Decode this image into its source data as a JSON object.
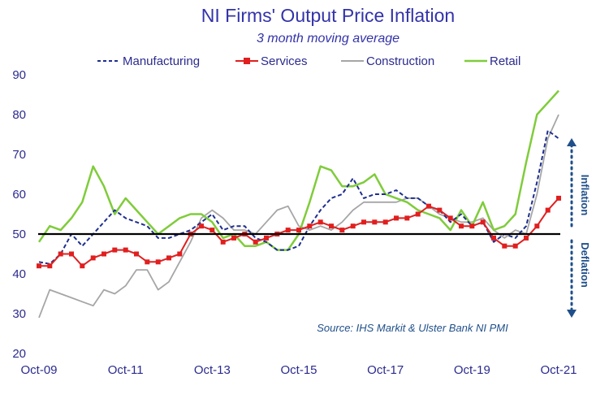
{
  "chart_data": {
    "type": "line",
    "title": "NI Firms' Output Price Inflation",
    "subtitle": "3 month moving average",
    "source": "Source: IHS Markit & Ulster Bank NI PMI",
    "x_tick_labels": [
      "Oct-09",
      "Oct-11",
      "Oct-13",
      "Oct-15",
      "Oct-17",
      "Oct-19",
      "Oct-21"
    ],
    "x_range": [
      "2009-10",
      "2021-10"
    ],
    "y_ticks": [
      20,
      30,
      40,
      50,
      60,
      70,
      80,
      90
    ],
    "ylim": [
      20,
      90
    ],
    "reference_line": 50,
    "annotations": {
      "upper": "Inflation",
      "lower": "Deflation"
    },
    "grid": false,
    "legend_position": "top",
    "series": [
      {
        "name": "Manufacturing",
        "color": "#1f2f8f",
        "style": "dashed",
        "x": [
          "2009-10",
          "2010-01",
          "2010-04",
          "2010-07",
          "2010-10",
          "2011-01",
          "2011-04",
          "2011-07",
          "2011-10",
          "2012-01",
          "2012-04",
          "2012-07",
          "2012-10",
          "2013-01",
          "2013-04",
          "2013-07",
          "2013-10",
          "2014-01",
          "2014-04",
          "2014-07",
          "2014-10",
          "2015-01",
          "2015-04",
          "2015-07",
          "2015-10",
          "2016-01",
          "2016-04",
          "2016-07",
          "2016-10",
          "2017-01",
          "2017-04",
          "2017-07",
          "2017-10",
          "2018-01",
          "2018-04",
          "2018-07",
          "2018-10",
          "2019-01",
          "2019-04",
          "2019-07",
          "2019-10",
          "2020-01",
          "2020-04",
          "2020-07",
          "2020-10",
          "2021-01",
          "2021-04",
          "2021-07",
          "2021-10"
        ],
        "values": [
          43,
          42.5,
          45,
          50,
          47,
          50,
          53,
          56,
          54,
          53,
          52,
          49,
          49,
          50,
          51,
          53,
          55,
          51,
          52,
          52,
          49,
          48,
          46,
          46,
          47,
          52,
          56,
          59,
          60,
          64,
          59,
          60,
          60,
          61,
          59,
          59,
          57,
          56,
          53,
          55,
          52,
          53,
          48,
          50,
          49,
          52,
          63,
          76,
          74
        ]
      },
      {
        "name": "Services",
        "color": "#e01f1f",
        "style": "solid-markers",
        "x": [
          "2009-10",
          "2010-01",
          "2010-04",
          "2010-07",
          "2010-10",
          "2011-01",
          "2011-04",
          "2011-07",
          "2011-10",
          "2012-01",
          "2012-04",
          "2012-07",
          "2012-10",
          "2013-01",
          "2013-04",
          "2013-07",
          "2013-10",
          "2014-01",
          "2014-04",
          "2014-07",
          "2014-10",
          "2015-01",
          "2015-04",
          "2015-07",
          "2015-10",
          "2016-01",
          "2016-04",
          "2016-07",
          "2016-10",
          "2017-01",
          "2017-04",
          "2017-07",
          "2017-10",
          "2018-01",
          "2018-04",
          "2018-07",
          "2018-10",
          "2019-01",
          "2019-04",
          "2019-07",
          "2019-10",
          "2020-01",
          "2020-04",
          "2020-07",
          "2020-10",
          "2021-01",
          "2021-04",
          "2021-07",
          "2021-10"
        ],
        "values": [
          42,
          42,
          45,
          45,
          42,
          44,
          45,
          46,
          46,
          45,
          43,
          43,
          44,
          45,
          50,
          52,
          51,
          48,
          49,
          50,
          48,
          49,
          50,
          51,
          51,
          52,
          53,
          52,
          51,
          52,
          53,
          53,
          53,
          54,
          54,
          55,
          57,
          56,
          54,
          52,
          52,
          53,
          49,
          47,
          47,
          49,
          52,
          56,
          59
        ]
      },
      {
        "name": "Construction",
        "color": "#a6a6a6",
        "style": "solid",
        "x": [
          "2009-10",
          "2010-01",
          "2010-04",
          "2010-07",
          "2010-10",
          "2011-01",
          "2011-04",
          "2011-07",
          "2011-10",
          "2012-01",
          "2012-04",
          "2012-07",
          "2012-10",
          "2013-01",
          "2013-04",
          "2013-07",
          "2013-10",
          "2014-01",
          "2014-04",
          "2014-07",
          "2014-10",
          "2015-01",
          "2015-04",
          "2015-07",
          "2015-10",
          "2016-01",
          "2016-04",
          "2016-07",
          "2016-10",
          "2017-01",
          "2017-04",
          "2017-07",
          "2017-10",
          "2018-01",
          "2018-04",
          "2018-07",
          "2018-10",
          "2019-01",
          "2019-04",
          "2019-07",
          "2019-10",
          "2020-01",
          "2020-04",
          "2020-07",
          "2020-10",
          "2021-01",
          "2021-04",
          "2021-07",
          "2021-10"
        ],
        "values": [
          29,
          36,
          35,
          34,
          33,
          32,
          36,
          35,
          37,
          41,
          41,
          36,
          38,
          43,
          48,
          54,
          56,
          54,
          51,
          51,
          50,
          53,
          56,
          57,
          52,
          51,
          52,
          51,
          53,
          56,
          58,
          58,
          58,
          58,
          59,
          59,
          57,
          55,
          54,
          53,
          53,
          54,
          51,
          49,
          51,
          50,
          60,
          74,
          80
        ]
      },
      {
        "name": "Retail",
        "color": "#7fcc3a",
        "style": "solid",
        "x": [
          "2009-10",
          "2010-01",
          "2010-04",
          "2010-07",
          "2010-10",
          "2011-01",
          "2011-04",
          "2011-07",
          "2011-10",
          "2012-01",
          "2012-04",
          "2012-07",
          "2012-10",
          "2013-01",
          "2013-04",
          "2013-07",
          "2013-10",
          "2014-01",
          "2014-04",
          "2014-07",
          "2014-10",
          "2015-01",
          "2015-04",
          "2015-07",
          "2015-10",
          "2016-01",
          "2016-04",
          "2016-07",
          "2016-10",
          "2017-01",
          "2017-04",
          "2017-07",
          "2017-10",
          "2018-01",
          "2018-04",
          "2018-07",
          "2018-10",
          "2019-01",
          "2019-04",
          "2019-07",
          "2019-10",
          "2020-01",
          "2020-04",
          "2020-07",
          "2020-10",
          "2021-01",
          "2021-04",
          "2021-07",
          "2021-10"
        ],
        "values": [
          48,
          52,
          51,
          54,
          58,
          67,
          62,
          55,
          59,
          56,
          53,
          50,
          52,
          54,
          55,
          55,
          53,
          49,
          50,
          47,
          47,
          48,
          46,
          46,
          50,
          58,
          67,
          66,
          62,
          62,
          63,
          65,
          60,
          59,
          58,
          56,
          55,
          54,
          51,
          56,
          52,
          58,
          51,
          52,
          55,
          68,
          80,
          83,
          86
        ]
      }
    ]
  }
}
